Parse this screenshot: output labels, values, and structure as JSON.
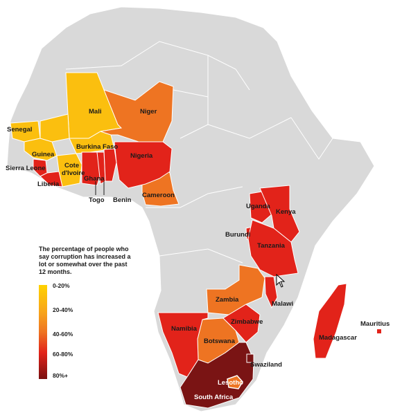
{
  "legend": {
    "title": "The percentage of people who say corruption has increased a lot or somewhat over the past 12 months.",
    "ranges": [
      "0-20%",
      "20-40%",
      "40-60%",
      "60-80%",
      "80%+"
    ],
    "colors": [
      "#ffd200",
      "#f7a21b",
      "#ee7422",
      "#e2231a",
      "#8b1515"
    ]
  },
  "map": {
    "background_country_color": "#d9d9d9",
    "countries": [
      {
        "name": "Mali",
        "category": "0-20%"
      },
      {
        "name": "Senegal",
        "category": "0-20%"
      },
      {
        "name": "Guinea",
        "category": "0-20%"
      },
      {
        "name": "Burkina Faso",
        "category": "0-20%"
      },
      {
        "name": "Cote d'Ivoire",
        "category": "0-20%"
      },
      {
        "name": "Niger",
        "category": "40-60%"
      },
      {
        "name": "Cameroon",
        "category": "40-60%"
      },
      {
        "name": "Zambia",
        "category": "40-60%"
      },
      {
        "name": "Botswana",
        "category": "40-60%"
      },
      {
        "name": "Lesotho",
        "category": "40-60%"
      },
      {
        "name": "Nigeria",
        "category": "60-80%"
      },
      {
        "name": "Sierra Leone",
        "category": "60-80%"
      },
      {
        "name": "Liberia",
        "category": "60-80%"
      },
      {
        "name": "Ghana",
        "category": "60-80%"
      },
      {
        "name": "Togo",
        "category": "60-80%"
      },
      {
        "name": "Benin",
        "category": "60-80%"
      },
      {
        "name": "Uganda",
        "category": "60-80%"
      },
      {
        "name": "Kenya",
        "category": "60-80%"
      },
      {
        "name": "Burundi",
        "category": "60-80%"
      },
      {
        "name": "Tanzania",
        "category": "60-80%"
      },
      {
        "name": "Malawi",
        "category": "60-80%"
      },
      {
        "name": "Namibia",
        "category": "60-80%"
      },
      {
        "name": "Zimbabwe",
        "category": "60-80%"
      },
      {
        "name": "Madagascar",
        "category": "60-80%"
      },
      {
        "name": "Mauritius",
        "category": "60-80%"
      },
      {
        "name": "Swaziland",
        "category": "80%+"
      },
      {
        "name": "South Africa",
        "category": "80%+"
      }
    ],
    "labels": {
      "mali": "Mali",
      "niger": "Niger",
      "senegal": "Senegal",
      "guinea": "Guinea",
      "burkina": "Burkina Faso",
      "sierra": "Sierra Leone",
      "cote1": "Cote",
      "cote2": "d'Ivoire",
      "liberia": "Liberia",
      "ghana": "Ghana",
      "nigeria": "Nigeria",
      "togo": "Togo",
      "benin": "Benin",
      "cameroon": "Cameroon",
      "uganda": "Uganda",
      "kenya": "Kenya",
      "burundi": "Burundi",
      "tanzania": "Tanzania",
      "zambia": "Zambia",
      "malawi": "Malawi",
      "namibia": "Namibia",
      "zimbabwe": "Zimbabwe",
      "botswana": "Botswana",
      "madagascar": "Madagascar",
      "mauritius": "Mauritius",
      "swaziland": "Swaziland",
      "lesotho": "Lesotho",
      "south_africa": "South Africa"
    }
  }
}
